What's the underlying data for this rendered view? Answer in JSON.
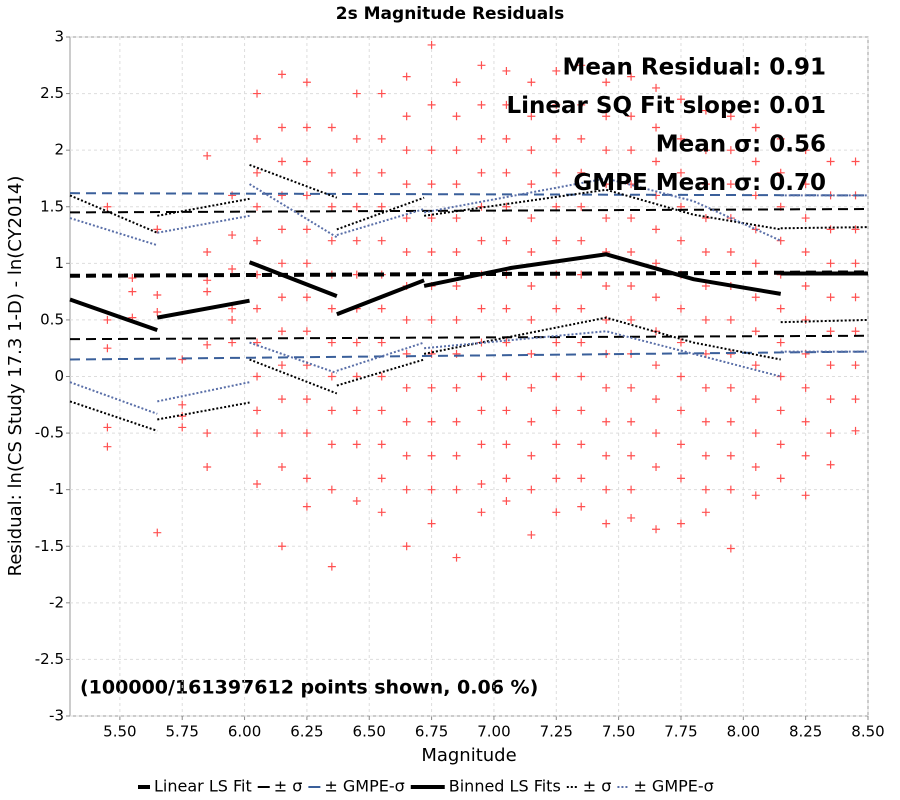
{
  "chart_data": {
    "type": "scatter",
    "title": "2s Magnitude Residuals",
    "x_label": "Magnitude",
    "y_label": "Residual: ln(CS Study 17.3 1-D) - ln(CY2014)",
    "annotations": [
      "Mean Residual: 0.91",
      "Linear SQ Fit slope: 0.01",
      "Mean σ: 0.56",
      "GMPE Mean σ: 0.70"
    ],
    "footnote": "(100000/161397612 points shown, 0.06 %)",
    "xlim": [
      5.3,
      8.5
    ],
    "ylim": [
      -3,
      3
    ],
    "xticks": [
      {
        "value": 5.5,
        "label": "5.50"
      },
      {
        "value": 5.75,
        "label": "5.75"
      },
      {
        "value": 6,
        "label": "6.00"
      },
      {
        "value": 6.25,
        "label": "6.25"
      },
      {
        "value": 6.5,
        "label": "6.50"
      },
      {
        "value": 6.75,
        "label": "6.75"
      },
      {
        "value": 7,
        "label": "7.00"
      },
      {
        "value": 7.25,
        "label": "7.25"
      },
      {
        "value": 7.5,
        "label": "7.50"
      },
      {
        "value": 7.75,
        "label": "7.75"
      },
      {
        "value": 8,
        "label": "8.00"
      },
      {
        "value": 8.25,
        "label": "8.25"
      },
      {
        "value": 8.5,
        "label": "8.50"
      }
    ],
    "yticks": [
      3,
      2.5,
      2,
      1.5,
      1,
      0.5,
      0,
      -0.5,
      -1,
      -1.5,
      -2,
      -2.5,
      -3
    ],
    "grid": true,
    "scatter_color": "#ff5050",
    "scatter": [
      {
        "x": 5.45,
        "y": [
          1.5,
          0.5,
          0.25,
          -0.45,
          -0.62
        ]
      },
      {
        "x": 5.55,
        "y": [
          0.87,
          0.75,
          0.52
        ]
      },
      {
        "x": 5.65,
        "y": [
          1.3,
          0.72,
          0.57,
          -1.38
        ]
      },
      {
        "x": 5.75,
        "y": [
          0.15,
          -0.25,
          -0.35,
          -0.45
        ]
      },
      {
        "x": 5.85,
        "y": [
          1.95,
          1.1,
          0.85,
          0.75,
          0.28,
          -0.5,
          -0.8
        ]
      },
      {
        "x": 5.95,
        "y": [
          1.6,
          1.25,
          0.95,
          0.6,
          0.5,
          0.3
        ]
      },
      {
        "x": 6.05,
        "y": [
          2.5,
          2.1,
          1.8,
          1.5,
          1.2,
          0.9,
          0.6,
          0.3,
          0,
          -0.3,
          -0.5,
          -0.95
        ]
      },
      {
        "x": 6.15,
        "y": [
          2.67,
          2.2,
          1.9,
          1.6,
          1.3,
          1,
          0.7,
          0.4,
          0.1,
          -0.2,
          -0.5,
          -0.8,
          -1.5
        ]
      },
      {
        "x": 6.25,
        "y": [
          2.6,
          2.2,
          1.9,
          1.6,
          1.3,
          1,
          0.7,
          0.4,
          0.1,
          -0.2,
          -0.5,
          -0.9,
          -1.15
        ]
      },
      {
        "x": 6.35,
        "y": [
          2.2,
          1.8,
          1.5,
          1.2,
          0.9,
          0.6,
          0.3,
          0,
          -0.3,
          -0.6,
          -1,
          -1.68
        ]
      },
      {
        "x": 6.45,
        "y": [
          2.5,
          2.1,
          1.8,
          1.5,
          1.2,
          0.9,
          0.6,
          0.3,
          0,
          -0.3,
          -0.6,
          -1.1
        ]
      },
      {
        "x": 6.55,
        "y": [
          2.5,
          2.1,
          1.8,
          1.5,
          1.2,
          0.9,
          0.6,
          0.3,
          0,
          -0.3,
          -0.6,
          -0.9,
          -1.2
        ]
      },
      {
        "x": 6.65,
        "y": [
          2.65,
          2.3,
          2,
          1.7,
          1.4,
          1.1,
          0.8,
          0.5,
          0.2,
          -0.1,
          -0.4,
          -0.7,
          -1,
          -1.5
        ]
      },
      {
        "x": 6.75,
        "y": [
          2.93,
          2.4,
          2,
          1.7,
          1.4,
          1.1,
          0.8,
          0.5,
          0.2,
          -0.1,
          -0.4,
          -0.7,
          -1,
          -1.3
        ]
      },
      {
        "x": 6.85,
        "y": [
          2.6,
          2.3,
          2,
          1.7,
          1.4,
          1.1,
          0.8,
          0.5,
          0.2,
          -0.1,
          -0.4,
          -0.7,
          -1,
          -1.6
        ]
      },
      {
        "x": 6.95,
        "y": [
          2.75,
          2.4,
          2.1,
          1.8,
          1.5,
          1.2,
          0.9,
          0.6,
          0.3,
          0,
          -0.3,
          -0.6,
          -0.95,
          -1.2
        ]
      },
      {
        "x": 7.05,
        "y": [
          2.7,
          2.4,
          2.1,
          1.8,
          1.5,
          1.2,
          0.9,
          0.6,
          0.3,
          0,
          -0.3,
          -0.6,
          -0.9,
          -1.1
        ]
      },
      {
        "x": 7.15,
        "y": [
          2.6,
          2.3,
          2,
          1.7,
          1.4,
          1.1,
          0.8,
          0.5,
          0.2,
          -0.1,
          -0.4,
          -0.7,
          -1,
          -1.4
        ]
      },
      {
        "x": 7.25,
        "y": [
          2.7,
          2.4,
          2.1,
          1.8,
          1.5,
          1.2,
          0.9,
          0.6,
          0.3,
          0,
          -0.3,
          -0.6,
          -0.9,
          -1.2
        ]
      },
      {
        "x": 7.35,
        "y": [
          2.75,
          2.4,
          2.1,
          1.8,
          1.5,
          1.2,
          0.9,
          0.6,
          0.3,
          0,
          -0.3,
          -0.6,
          -0.9,
          -1.15
        ]
      },
      {
        "x": 7.45,
        "y": [
          2.6,
          2.3,
          2,
          1.7,
          1.4,
          1.1,
          0.8,
          0.5,
          0.2,
          -0.1,
          -0.4,
          -0.7,
          -1,
          -1.3
        ]
      },
      {
        "x": 7.55,
        "y": [
          2.65,
          2.3,
          2,
          1.7,
          1.4,
          1.1,
          0.8,
          0.5,
          0.2,
          -0.1,
          -0.4,
          -0.7,
          -1,
          -1.25
        ]
      },
      {
        "x": 7.65,
        "y": [
          2.55,
          2.2,
          1.9,
          1.6,
          1.3,
          1,
          0.7,
          0.4,
          0.1,
          -0.2,
          -0.5,
          -0.8,
          -1.35
        ]
      },
      {
        "x": 7.75,
        "y": [
          2.45,
          2.1,
          1.8,
          1.5,
          1.2,
          0.9,
          0.6,
          0.3,
          0,
          -0.3,
          -0.6,
          -0.9,
          -1.3
        ]
      },
      {
        "x": 7.85,
        "y": [
          2.35,
          2,
          1.7,
          1.4,
          1.1,
          0.8,
          0.5,
          0.2,
          -0.1,
          -0.4,
          -0.7,
          -1,
          -1.2
        ]
      },
      {
        "x": 7.95,
        "y": [
          2.3,
          2,
          1.7,
          1.4,
          1.1,
          0.8,
          0.5,
          0.2,
          -0.1,
          -0.4,
          -0.7,
          -1,
          -1.52
        ]
      },
      {
        "x": 8.05,
        "y": [
          2.2,
          1.9,
          1.6,
          1.3,
          1,
          0.7,
          0.4,
          0.1,
          -0.2,
          -0.5,
          -0.8,
          -1.05
        ]
      },
      {
        "x": 8.15,
        "y": [
          2.1,
          1.8,
          1.5,
          1.2,
          0.9,
          0.6,
          0.3,
          0,
          -0.3,
          -0.6,
          -0.9
        ]
      },
      {
        "x": 8.25,
        "y": [
          2,
          1.7,
          1.4,
          1.1,
          0.8,
          0.5,
          0.2,
          -0.1,
          -0.4,
          -0.7,
          -1.05
        ]
      },
      {
        "x": 8.35,
        "y": [
          1.9,
          1.6,
          1.3,
          1,
          0.7,
          0.4,
          0.1,
          -0.2,
          -0.5,
          -0.78
        ]
      },
      {
        "x": 8.45,
        "y": [
          1.9,
          1.6,
          1.3,
          1,
          0.7,
          0.4,
          0.1,
          -0.2,
          -0.48
        ]
      }
    ],
    "series": [
      {
        "name": "Linear LS Fit",
        "color": "#000000",
        "style": "dashed",
        "width": 4,
        "x": [
          5.3,
          8.5
        ],
        "values": [
          0.89,
          0.92
        ]
      },
      {
        "name": "± σ",
        "color": "#000000",
        "style": "dashed",
        "width": 2,
        "x": [
          5.3,
          8.5,
          null,
          5.3,
          8.5
        ],
        "values": [
          1.45,
          1.48,
          null,
          0.33,
          0.36
        ]
      },
      {
        "name": "± GMPE-σ",
        "color": "#3a5f9a",
        "style": "dashed",
        "width": 2,
        "x": [
          5.3,
          8.5,
          null,
          5.3,
          8.5
        ],
        "values": [
          1.62,
          1.6,
          null,
          0.15,
          0.22
        ]
      },
      {
        "name": "Binned LS Fits",
        "color": "#000000",
        "style": "solid",
        "width": 4,
        "x": [
          5.3,
          5.65,
          null,
          5.65,
          6.02,
          null,
          6.02,
          6.37,
          null,
          6.37,
          6.72,
          null,
          6.72,
          7.07,
          7.45,
          7.8,
          8.15,
          null,
          8.15,
          8.5
        ],
        "values": [
          0.68,
          0.41,
          null,
          0.52,
          0.67,
          null,
          1.01,
          0.71,
          null,
          0.55,
          0.85,
          null,
          0.8,
          0.96,
          1.08,
          0.86,
          0.73,
          null,
          0.91,
          0.91
        ]
      },
      {
        "name": "± σ",
        "color": "#000000",
        "style": "dotted",
        "width": 2,
        "x": [
          5.3,
          5.65,
          null,
          5.65,
          6.02,
          null,
          6.02,
          6.37,
          null,
          6.37,
          6.72,
          null,
          6.72,
          7.45,
          7.8,
          8.15,
          null,
          8.15,
          8.5,
          null,
          5.3,
          5.65,
          null,
          5.65,
          6.02,
          null,
          6.02,
          6.37,
          null,
          6.37,
          6.72,
          null,
          6.72,
          7.45,
          7.8,
          8.15,
          null,
          8.15,
          8.5
        ],
        "values": [
          1.6,
          1.27,
          null,
          1.42,
          1.57,
          null,
          1.87,
          1.58,
          null,
          1.3,
          1.58,
          null,
          1.42,
          1.65,
          1.43,
          1.3,
          null,
          1.31,
          1.32,
          null,
          -0.22,
          -0.48,
          null,
          -0.38,
          -0.23,
          null,
          0.15,
          -0.15,
          null,
          -0.08,
          0.15,
          null,
          0.2,
          0.52,
          0.3,
          0.15,
          null,
          0.48,
          0.5
        ]
      },
      {
        "name": "± GMPE-σ",
        "color": "#5a6fa8",
        "style": "dotted",
        "width": 2,
        "x": [
          5.3,
          5.65,
          null,
          5.65,
          6.02,
          null,
          6.02,
          6.37,
          null,
          6.37,
          6.72,
          null,
          6.72,
          7.45,
          7.8,
          8.15,
          null,
          8.15,
          8.5,
          null,
          5.3,
          5.65,
          null,
          5.65,
          6.02,
          null,
          6.02,
          6.37,
          null,
          6.37,
          6.72,
          null,
          6.72,
          7.45,
          7.8,
          8.15,
          null,
          8.15,
          8.5
        ],
        "values": [
          1.4,
          1.16,
          null,
          1.27,
          1.42,
          null,
          1.7,
          1.23,
          null,
          1.25,
          1.48,
          null,
          1.45,
          1.75,
          1.55,
          1.2,
          null,
          1.6,
          1.6,
          null,
          -0.05,
          -0.33,
          null,
          -0.22,
          -0.05,
          null,
          0.3,
          0.03,
          null,
          0.05,
          0.3,
          null,
          0.25,
          0.4,
          0.2,
          0,
          null,
          0.22,
          0.22
        ]
      }
    ]
  }
}
